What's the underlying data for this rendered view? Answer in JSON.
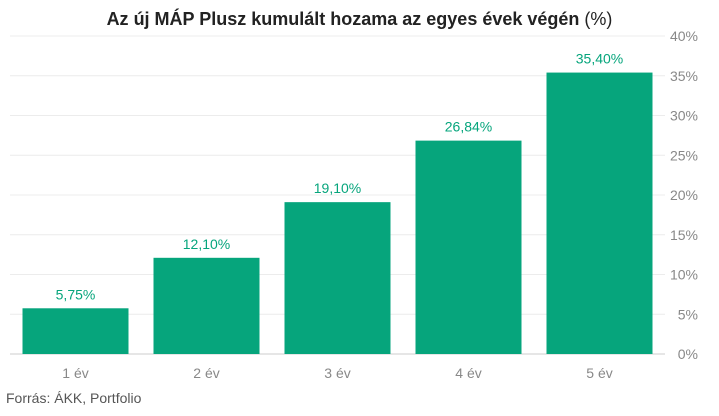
{
  "chart_data": {
    "type": "bar",
    "title": "Az új MÁP Plusz kumulált hozama az egyes évek végén",
    "title_unit": "(%)",
    "categories": [
      "1 év",
      "2 év",
      "3 év",
      "4 év",
      "5 év"
    ],
    "values": [
      5.75,
      12.1,
      19.1,
      26.84,
      35.4
    ],
    "data_labels": [
      "5,75%",
      "12,10%",
      "19,10%",
      "26,84%",
      "35,40%"
    ],
    "ylim": [
      0,
      40
    ],
    "yticks": [
      "0%",
      "5%",
      "10%",
      "15%",
      "20%",
      "25%",
      "30%",
      "35%",
      "40%"
    ],
    "y_axis_position": "right",
    "grid": true,
    "legend": "none",
    "bar_color": "#06a57c",
    "label_color": "#06a57c",
    "source": "Forrás: ÁKK, Portfolio"
  }
}
